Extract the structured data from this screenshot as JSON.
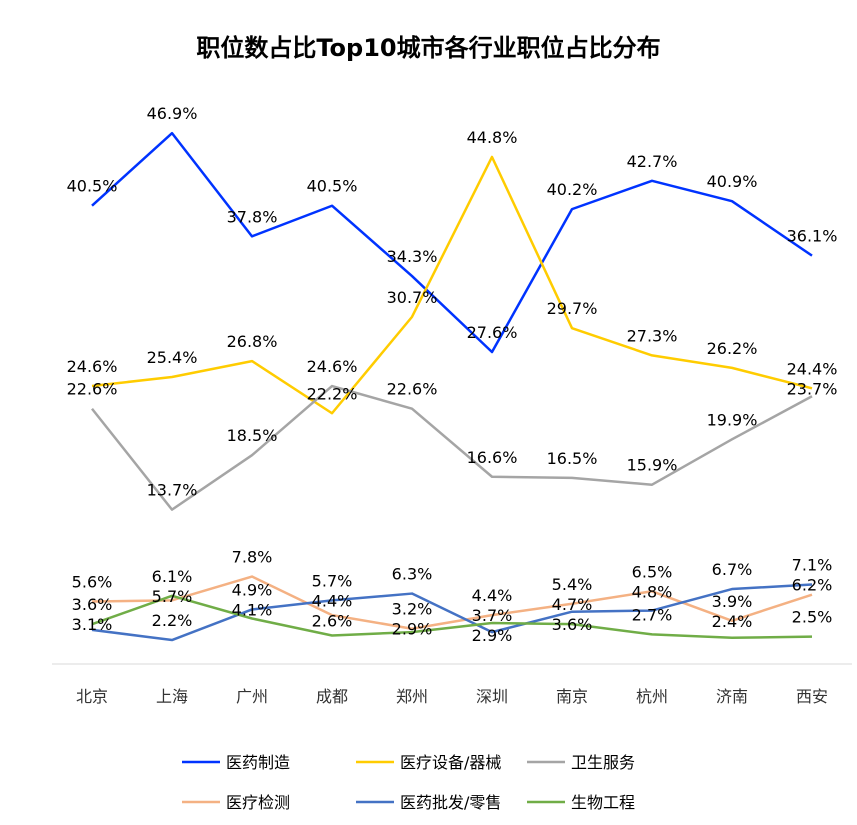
{
  "chart_data": {
    "type": "line",
    "title": "职位数占比Top10城市各行业职位占比分布",
    "categories": [
      "北京",
      "上海",
      "广州",
      "成都",
      "郑州",
      "深圳",
      "南京",
      "杭州",
      "济南",
      "西安"
    ],
    "ylim": [
      0,
      50
    ],
    "grid": false,
    "legend_position": "bottom",
    "value_suffix": "%",
    "series": [
      {
        "name": "医药制造",
        "color": "#0033FF",
        "values": [
          40.5,
          46.9,
          37.8,
          40.5,
          34.3,
          27.6,
          40.2,
          42.7,
          40.9,
          36.1
        ]
      },
      {
        "name": "医疗设备/器械",
        "color": "#FFCC00",
        "values": [
          24.6,
          25.4,
          26.8,
          22.2,
          30.7,
          44.8,
          29.7,
          27.3,
          26.2,
          24.4
        ]
      },
      {
        "name": "卫生服务",
        "color": "#A5A5A5",
        "values": [
          22.6,
          13.7,
          18.5,
          24.6,
          22.6,
          16.6,
          16.5,
          15.9,
          19.9,
          23.7
        ]
      },
      {
        "name": "医疗检测",
        "color": "#F4B183",
        "values": [
          5.6,
          5.7,
          7.8,
          4.4,
          3.2,
          4.4,
          5.4,
          6.5,
          3.9,
          6.2
        ]
      },
      {
        "name": "医药批发/零售",
        "color": "#4472C4",
        "values": [
          3.1,
          2.2,
          4.9,
          5.7,
          6.3,
          2.9,
          4.7,
          4.8,
          6.7,
          7.1
        ]
      },
      {
        "name": "生物工程",
        "color": "#70AD47",
        "values": [
          3.6,
          6.1,
          4.1,
          2.6,
          2.9,
          3.7,
          3.6,
          2.7,
          2.4,
          2.5
        ]
      }
    ]
  }
}
